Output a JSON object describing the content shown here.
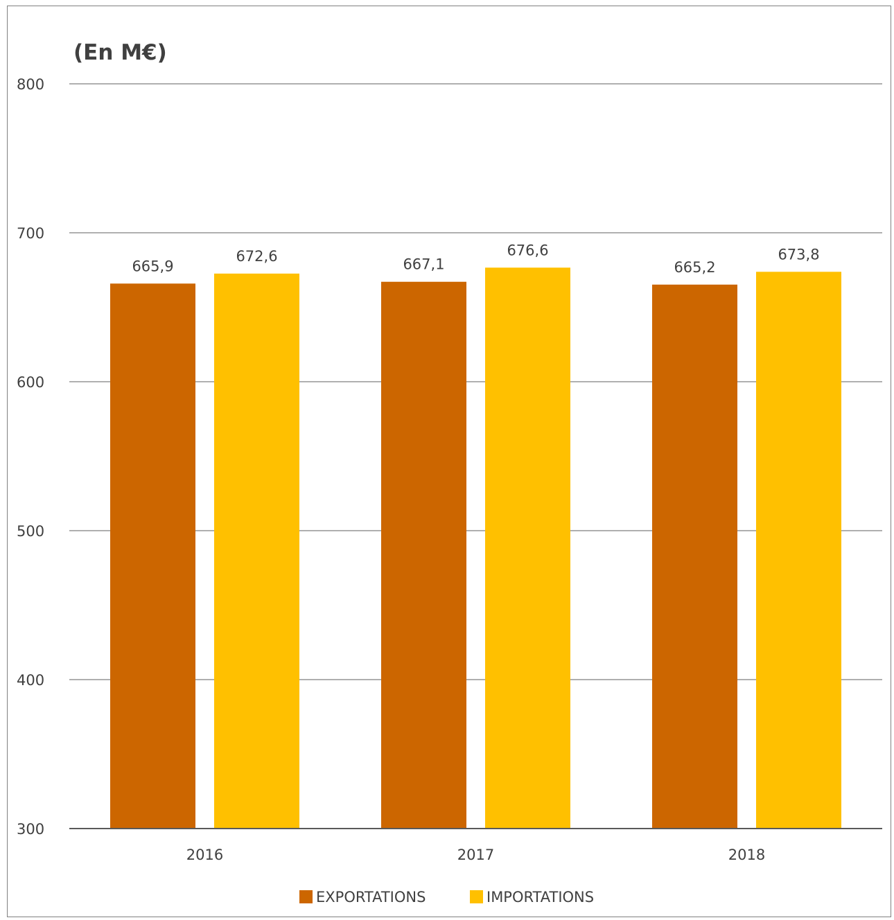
{
  "chart_data": {
    "type": "bar",
    "unit_label": "(En M€)",
    "categories": [
      "2016",
      "2017",
      "2018"
    ],
    "series": [
      {
        "name": "EXPORTATIONS",
        "color": "#CC6600",
        "values": [
          665.9,
          667.1,
          665.2
        ],
        "labels": [
          "665,9",
          "667,1",
          "665,2"
        ]
      },
      {
        "name": "IMPORTATIONS",
        "color": "#FFC000",
        "values": [
          672.6,
          676.6,
          673.8
        ],
        "labels": [
          "672,6",
          "676,6",
          "673,8"
        ]
      }
    ],
    "ylim": [
      300,
      800
    ],
    "yticks": [
      "300",
      "400",
      "500",
      "600",
      "700",
      "800"
    ],
    "grid": true,
    "legend": "bottom"
  }
}
